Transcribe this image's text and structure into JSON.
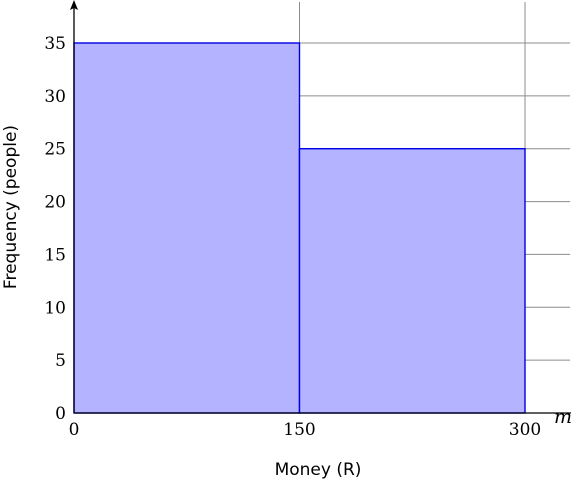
{
  "chart_data": {
    "type": "bar",
    "subtype": "histogram",
    "bins": [
      {
        "from": 0,
        "to": 150,
        "value": 35
      },
      {
        "from": 150,
        "to": 300,
        "value": 25
      }
    ],
    "xlabel": "Money (R)",
    "ylabel": "Frequency (people)",
    "x_axis_variable": "m",
    "x_ticks": [
      "0",
      "150",
      "300"
    ],
    "y_ticks": [
      "0",
      "5",
      "10",
      "15",
      "20",
      "25",
      "30",
      "35"
    ],
    "xlim": [
      0,
      330
    ],
    "ylim": [
      0,
      35
    ],
    "grid": true,
    "colors": {
      "bar_fill": "#b3b3ff",
      "bar_stroke": "#0000e6",
      "grid": "#8c8c8c",
      "axis": "#000000"
    }
  }
}
